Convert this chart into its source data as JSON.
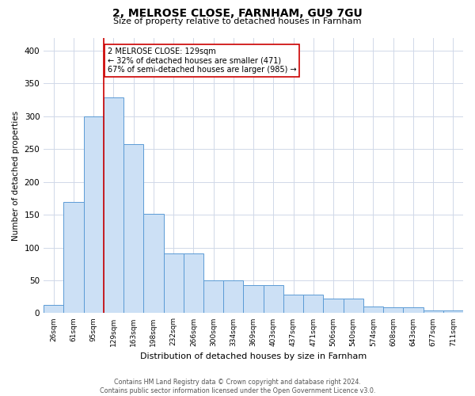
{
  "title": "2, MELROSE CLOSE, FARNHAM, GU9 7GU",
  "subtitle": "Size of property relative to detached houses in Farnham",
  "xlabel": "Distribution of detached houses by size in Farnham",
  "ylabel": "Number of detached properties",
  "bar_labels": [
    "26sqm",
    "61sqm",
    "95sqm",
    "129sqm",
    "163sqm",
    "198sqm",
    "232sqm",
    "266sqm",
    "300sqm",
    "334sqm",
    "369sqm",
    "403sqm",
    "437sqm",
    "471sqm",
    "506sqm",
    "540sqm",
    "574sqm",
    "608sqm",
    "643sqm",
    "677sqm",
    "711sqm"
  ],
  "bar_heights": [
    13,
    170,
    300,
    329,
    258,
    152,
    91,
    91,
    50,
    50,
    43,
    43,
    28,
    28,
    22,
    22,
    10,
    9,
    9,
    4,
    4
  ],
  "annotation_text": "2 MELROSE CLOSE: 129sqm\n← 32% of detached houses are smaller (471)\n67% of semi-detached houses are larger (985) →",
  "bar_color": "#cce0f5",
  "bar_edge_color": "#5b9bd5",
  "red_line_color": "#cc0000",
  "annotation_box_edge": "#cc0000",
  "background_color": "#ffffff",
  "grid_color": "#d0d8e8",
  "ylim": [
    0,
    420
  ],
  "footnote": "Contains HM Land Registry data © Crown copyright and database right 2024.\nContains public sector information licensed under the Open Government Licence v3.0."
}
